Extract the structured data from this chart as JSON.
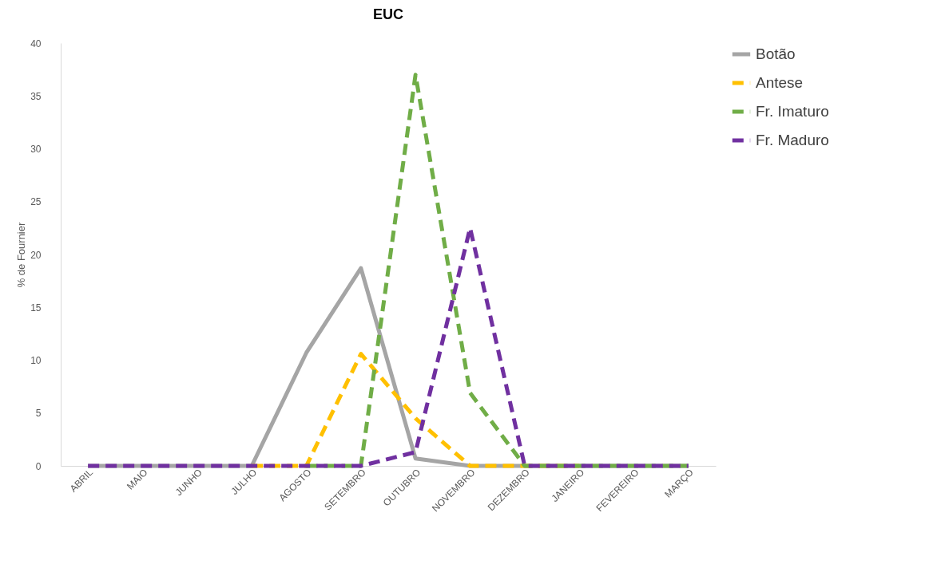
{
  "chart_data": {
    "type": "line",
    "title": "EUC",
    "ylabel": "% de Fournier",
    "categories": [
      "ABRIL",
      "MAIO",
      "JUNHO",
      "JULHO",
      "AGOSTO",
      "SETEMBRO",
      "OUTUBRO",
      "NOVEMBRO",
      "DEZEMBRO",
      "JANEIRO",
      "FEVEREIRO",
      "MARÇO"
    ],
    "series": [
      {
        "name": "Botão",
        "color": "#a5a5a5",
        "line_style": "solid",
        "values": [
          0,
          0,
          0,
          0,
          10.7,
          18.7,
          0.7,
          0,
          0,
          0,
          0,
          0
        ]
      },
      {
        "name": "Antese",
        "color": "#ffc000",
        "line_style": "dashed",
        "values": [
          null,
          null,
          null,
          0,
          0,
          10.6,
          4.5,
          0,
          0,
          0,
          null,
          null
        ]
      },
      {
        "name": "Fr. Imaturo",
        "color": "#70ad47",
        "line_style": "dashed",
        "values": [
          null,
          null,
          null,
          null,
          0,
          0,
          37,
          6.9,
          0,
          0,
          0,
          0
        ]
      },
      {
        "name": "Fr. Maduro",
        "color": "#7030a0",
        "line_style": "dashed",
        "values": [
          0,
          0,
          0,
          0,
          0,
          0,
          1.3,
          22.5,
          0,
          0,
          0,
          0
        ]
      }
    ],
    "ylim": [
      0,
      40
    ],
    "yticks": [
      0,
      5,
      10,
      15,
      20,
      25,
      30,
      35,
      40
    ],
    "grid": false,
    "legend": "right"
  }
}
